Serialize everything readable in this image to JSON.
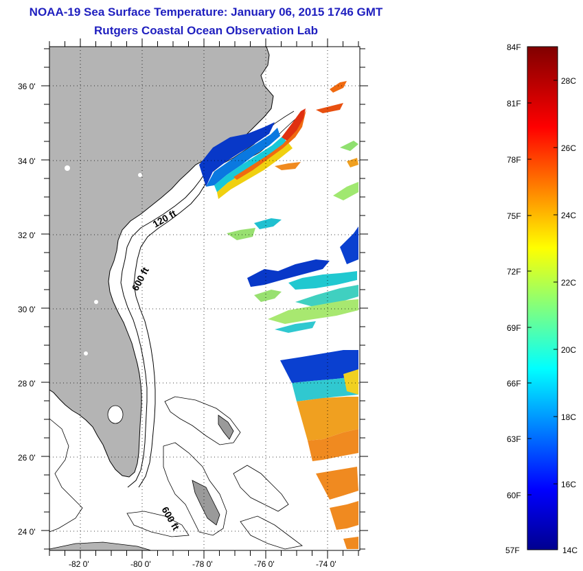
{
  "header": {
    "title": "NOAA-19 Sea Surface Temperature:  January 06, 2015 1746 GMT",
    "subtitle": "Rutgers Coastal Ocean Observation Lab"
  },
  "map": {
    "lat_labels": [
      "36 0'",
      "34 0'",
      "32 0'",
      "30 0'",
      "28 0'",
      "26 0'",
      "24 0'"
    ],
    "lon_labels": [
      "-82 0'",
      "-80 0'",
      "-78 0'",
      "-76 0'",
      "-74 0'"
    ],
    "contour_labels": [
      "120 ft",
      "600 ft",
      "600 ft"
    ],
    "land_color": "#b4b4b4"
  },
  "colorbar": {
    "f_labels": [
      "84F",
      "81F",
      "78F",
      "75F",
      "72F",
      "69F",
      "66F",
      "63F",
      "60F",
      "57F"
    ],
    "c_labels": [
      "28C",
      "26C",
      "24C",
      "22C",
      "20C",
      "18C",
      "16C",
      "14C"
    ]
  }
}
